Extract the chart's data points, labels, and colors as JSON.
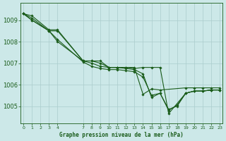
{
  "title": "Graphe pression niveau de la mer (hPa)",
  "background_color": "#cce8e8",
  "line_color": "#1a5c1a",
  "grid_color": "#aacccc",
  "ylim": [
    1004.2,
    1009.8
  ],
  "yticks": [
    1005,
    1006,
    1007,
    1008,
    1009
  ],
  "xlim": [
    -0.3,
    23.3
  ],
  "x_ticks": [
    0,
    1,
    2,
    3,
    4,
    7,
    8,
    9,
    10,
    11,
    12,
    13,
    14,
    15,
    16,
    17,
    18,
    19,
    20,
    21,
    22,
    23
  ],
  "series": [
    {
      "x": [
        0,
        1,
        3,
        4,
        7,
        8,
        9,
        10,
        11,
        12,
        13,
        14,
        15,
        16,
        19,
        20,
        21,
        22,
        23
      ],
      "y": [
        1009.3,
        1009.2,
        1008.55,
        1008.55,
        1007.1,
        1007.1,
        1007.1,
        1006.8,
        1006.8,
        1006.8,
        1006.8,
        1005.55,
        1005.8,
        1005.75,
        1005.85,
        1005.85,
        1005.85,
        1005.85,
        1005.85
      ]
    },
    {
      "x": [
        0,
        1,
        3,
        4,
        7,
        8,
        9,
        10,
        11,
        12,
        13,
        14,
        15,
        16,
        17,
        18,
        19,
        20,
        21,
        22,
        23
      ],
      "y": [
        1009.3,
        1009.1,
        1008.5,
        1008.0,
        1007.1,
        1007.0,
        1006.85,
        1006.8,
        1006.8,
        1006.75,
        1006.7,
        1006.5,
        1005.4,
        1005.6,
        1004.8,
        1005.05,
        1005.6,
        1005.7,
        1005.7,
        1005.75,
        1005.75
      ]
    },
    {
      "x": [
        0,
        1,
        3,
        4,
        7,
        8,
        9,
        10,
        11,
        12,
        13,
        14,
        15,
        16,
        17,
        18,
        19,
        20,
        21,
        22,
        23
      ],
      "y": [
        1009.3,
        1009.0,
        1008.5,
        1008.1,
        1007.05,
        1006.85,
        1006.75,
        1006.7,
        1006.7,
        1006.65,
        1006.6,
        1006.35,
        1005.5,
        1005.6,
        1004.85,
        1005.0,
        1005.6,
        1005.7,
        1005.7,
        1005.75,
        1005.75
      ]
    },
    {
      "x": [
        0,
        1,
        3,
        4,
        7,
        8,
        9,
        10,
        11,
        12,
        13,
        14,
        15,
        16,
        17,
        19,
        20,
        21,
        22,
        23
      ],
      "y": [
        1009.3,
        1009.0,
        1008.5,
        1008.5,
        1007.1,
        1007.1,
        1007.0,
        1006.8,
        1006.8,
        1006.8,
        1006.75,
        1006.8,
        1006.8,
        1006.8,
        1004.65,
        1005.6,
        1005.7,
        1005.7,
        1005.75,
        1005.75
      ]
    }
  ]
}
